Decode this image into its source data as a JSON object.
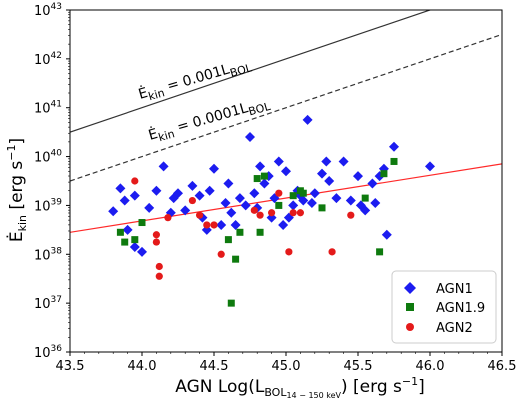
{
  "chart_data": {
    "type": "scatter",
    "xlabel": {
      "main": "AGN Log(L",
      "sub": "BOL",
      "sub2": "14 − 150 keV",
      "close": ")",
      "unit": "[erg s",
      "unit_exp": "−1",
      "unit_close": "]"
    },
    "ylabel": {
      "main": "Ė",
      "sub": "kin",
      "unit": "[erg s",
      "unit_exp": "−1",
      "unit_close": "]"
    },
    "xlim": [
      43.5,
      46.5
    ],
    "ylim_log10": [
      36,
      43
    ],
    "x_tick_labels": [
      "43.5",
      "44.0",
      "44.5",
      "45.0",
      "45.5",
      "46.0",
      "46.5"
    ],
    "y_tick_labels": [
      {
        "base": "10",
        "exp": "36"
      },
      {
        "base": "10",
        "exp": "37"
      },
      {
        "base": "10",
        "exp": "38"
      },
      {
        "base": "10",
        "exp": "39"
      },
      {
        "base": "10",
        "exp": "40"
      },
      {
        "base": "10",
        "exp": "41"
      },
      {
        "base": "10",
        "exp": "42"
      },
      {
        "base": "10",
        "exp": "43"
      }
    ],
    "y_scale": "log",
    "grid": false,
    "legend_position": "bottom-right",
    "reference_lines": [
      {
        "label_main": "Ė",
        "label_sub": "kin",
        "label_rest": " = 0.001L",
        "label_sub2": "BOL",
        "log_ratio": -3,
        "color": "#333333",
        "style": "solid"
      },
      {
        "label_main": "Ė",
        "label_sub": "kin",
        "label_rest": " = 0.0001L",
        "label_sub2": "BOL",
        "log_ratio": -4,
        "color": "#333333",
        "style": "dashed"
      }
    ],
    "fit_line": {
      "color": "#ff2a2a",
      "x": [
        43.5,
        46.5
      ],
      "log_y": [
        38.45,
        39.85
      ]
    },
    "series": [
      {
        "name": "AGN1",
        "marker": "diamond",
        "color": "#1c1cf0",
        "points": [
          [
            43.8,
            38.88
          ],
          [
            43.85,
            39.35
          ],
          [
            43.88,
            39.1
          ],
          [
            43.9,
            38.5
          ],
          [
            43.95,
            39.2
          ],
          [
            43.95,
            38.15
          ],
          [
            44.0,
            38.05
          ],
          [
            44.05,
            38.95
          ],
          [
            44.1,
            39.3
          ],
          [
            44.15,
            39.8
          ],
          [
            44.2,
            38.85
          ],
          [
            44.22,
            39.15
          ],
          [
            44.25,
            39.25
          ],
          [
            44.3,
            38.9
          ],
          [
            44.35,
            39.4
          ],
          [
            44.4,
            39.2
          ],
          [
            44.42,
            38.75
          ],
          [
            44.45,
            38.5
          ],
          [
            44.47,
            39.3
          ],
          [
            44.5,
            39.75
          ],
          [
            44.55,
            38.6
          ],
          [
            44.58,
            39.05
          ],
          [
            44.6,
            39.45
          ],
          [
            44.62,
            38.85
          ],
          [
            44.65,
            38.6
          ],
          [
            44.68,
            39.15
          ],
          [
            44.72,
            39.0
          ],
          [
            44.75,
            40.4
          ],
          [
            44.78,
            39.25
          ],
          [
            44.8,
            38.95
          ],
          [
            44.82,
            39.8
          ],
          [
            44.85,
            39.45
          ],
          [
            44.88,
            39.6
          ],
          [
            44.9,
            38.75
          ],
          [
            44.92,
            39.15
          ],
          [
            44.95,
            39.9
          ],
          [
            44.98,
            38.6
          ],
          [
            45.0,
            39.7
          ],
          [
            45.02,
            38.75
          ],
          [
            45.05,
            39.0
          ],
          [
            45.08,
            39.3
          ],
          [
            45.1,
            39.2
          ],
          [
            45.12,
            39.1
          ],
          [
            45.15,
            40.75
          ],
          [
            45.18,
            39.05
          ],
          [
            45.2,
            39.25
          ],
          [
            45.25,
            39.65
          ],
          [
            45.28,
            39.9
          ],
          [
            45.3,
            39.5
          ],
          [
            45.35,
            39.15
          ],
          [
            45.4,
            39.9
          ],
          [
            45.45,
            39.1
          ],
          [
            45.5,
            39.6
          ],
          [
            45.52,
            39.0
          ],
          [
            45.55,
            38.9
          ],
          [
            45.6,
            39.45
          ],
          [
            45.62,
            39.05
          ],
          [
            45.65,
            39.6
          ],
          [
            45.68,
            39.75
          ],
          [
            45.7,
            38.4
          ],
          [
            45.75,
            40.2
          ],
          [
            46.0,
            39.8
          ]
        ]
      },
      {
        "name": "AGN1.9",
        "marker": "square",
        "color": "#0e7a0e",
        "points": [
          [
            43.85,
            38.45
          ],
          [
            43.88,
            38.25
          ],
          [
            43.95,
            38.3
          ],
          [
            44.0,
            38.65
          ],
          [
            44.6,
            38.3
          ],
          [
            44.62,
            37.0
          ],
          [
            44.65,
            37.9
          ],
          [
            44.68,
            38.45
          ],
          [
            44.8,
            39.55
          ],
          [
            44.82,
            38.45
          ],
          [
            44.85,
            39.6
          ],
          [
            44.95,
            39.0
          ],
          [
            45.05,
            39.2
          ],
          [
            45.1,
            39.3
          ],
          [
            45.12,
            39.25
          ],
          [
            45.25,
            38.95
          ],
          [
            45.55,
            39.15
          ],
          [
            45.65,
            38.05
          ],
          [
            45.68,
            39.65
          ],
          [
            45.75,
            39.9
          ]
        ]
      },
      {
        "name": "AGN2",
        "marker": "circle",
        "color": "#e41a1a",
        "points": [
          [
            43.95,
            39.5
          ],
          [
            44.1,
            38.4
          ],
          [
            44.1,
            38.25
          ],
          [
            44.12,
            37.75
          ],
          [
            44.12,
            37.55
          ],
          [
            44.18,
            38.75
          ],
          [
            44.35,
            39.1
          ],
          [
            44.4,
            38.8
          ],
          [
            44.45,
            38.6
          ],
          [
            44.5,
            38.6
          ],
          [
            44.55,
            38.0
          ],
          [
            44.78,
            38.9
          ],
          [
            44.82,
            38.8
          ],
          [
            44.9,
            38.85
          ],
          [
            44.95,
            39.25
          ],
          [
            45.02,
            38.05
          ],
          [
            45.05,
            38.85
          ],
          [
            45.1,
            38.85
          ],
          [
            45.32,
            38.05
          ],
          [
            45.45,
            38.8
          ]
        ]
      }
    ]
  }
}
